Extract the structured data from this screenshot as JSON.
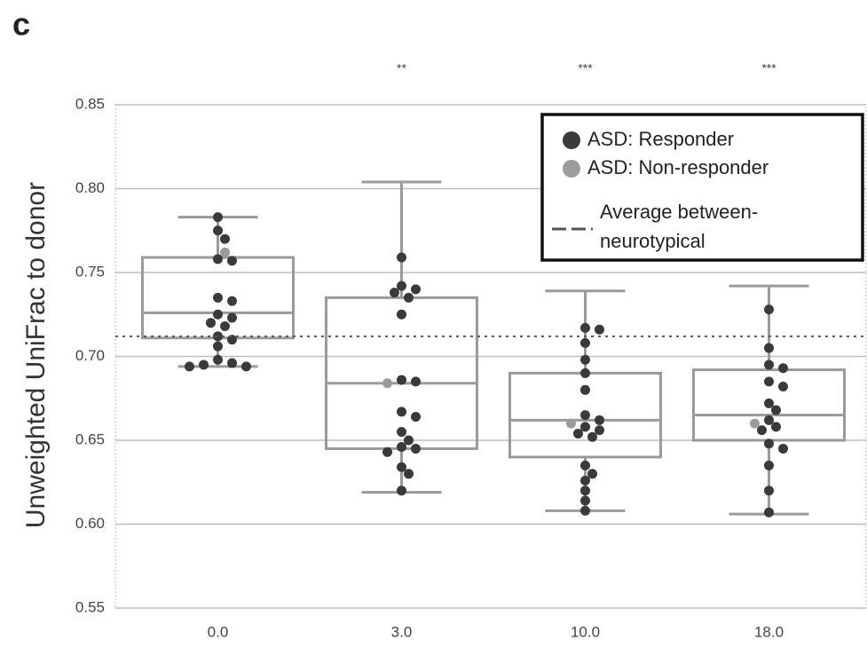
{
  "chart_data": {
    "type": "box",
    "panel_label": "c",
    "y_label": "Unweighted UniFrac to donor",
    "categories": [
      "0.0",
      "3.0",
      "10.0",
      "18.0"
    ],
    "significance": [
      null,
      "**",
      "***",
      "***"
    ],
    "ylim": [
      0.55,
      0.85
    ],
    "yticks": [
      0.55,
      {
        "value": 0.6,
        "label": "0.60"
      },
      0.65,
      {
        "value": 0.7,
        "label": "0.70"
      },
      0.75,
      {
        "value": 0.8,
        "label": "0.80"
      },
      0.85
    ],
    "grid": true,
    "box_color": "#9a9a9a",
    "boxes": [
      {
        "whislo": 0.694,
        "q1": 0.711,
        "med": 0.726,
        "q3": 0.759,
        "whishi": 0.783
      },
      {
        "whislo": 0.619,
        "q1": 0.645,
        "med": 0.684,
        "q3": 0.735,
        "whishi": 0.804
      },
      {
        "whislo": 0.608,
        "q1": 0.64,
        "med": 0.662,
        "q3": 0.69,
        "whishi": 0.739
      },
      {
        "whislo": 0.606,
        "q1": 0.65,
        "med": 0.665,
        "q3": 0.692,
        "whishi": 0.742
      }
    ],
    "series": [
      {
        "name": "ASD: Responder",
        "color": "#3a3a3a",
        "values": [
          [
            0.783,
            0.775,
            0.77,
            0.758,
            0.757,
            0.735,
            0.733,
            0.725,
            0.723,
            0.72,
            0.718,
            0.712,
            0.71,
            0.706,
            0.698,
            0.696,
            0.695,
            0.694,
            0.694
          ],
          [
            0.759,
            0.742,
            0.74,
            0.738,
            0.735,
            0.725,
            0.686,
            0.685,
            0.667,
            0.664,
            0.655,
            0.65,
            0.646,
            0.645,
            0.643,
            0.634,
            0.63,
            0.62
          ],
          [
            0.717,
            0.716,
            0.708,
            0.698,
            0.69,
            0.68,
            0.665,
            0.662,
            0.658,
            0.656,
            0.654,
            0.652,
            0.635,
            0.63,
            0.626,
            0.62,
            0.614,
            0.608
          ],
          [
            0.728,
            0.705,
            0.695,
            0.693,
            0.685,
            0.682,
            0.672,
            0.668,
            0.662,
            0.658,
            0.656,
            0.648,
            0.645,
            0.635,
            0.62,
            0.607
          ]
        ]
      },
      {
        "name": "ASD: Non-responder",
        "color": "#9c9c9c",
        "values": [
          [
            0.762
          ],
          [
            0.684
          ],
          [
            0.66
          ],
          [
            0.66
          ]
        ]
      }
    ],
    "reference_line": {
      "label_lines": [
        "Average between-",
        "neurotypical"
      ],
      "value": 0.712,
      "color": "#555555"
    },
    "legend": "upper right"
  }
}
